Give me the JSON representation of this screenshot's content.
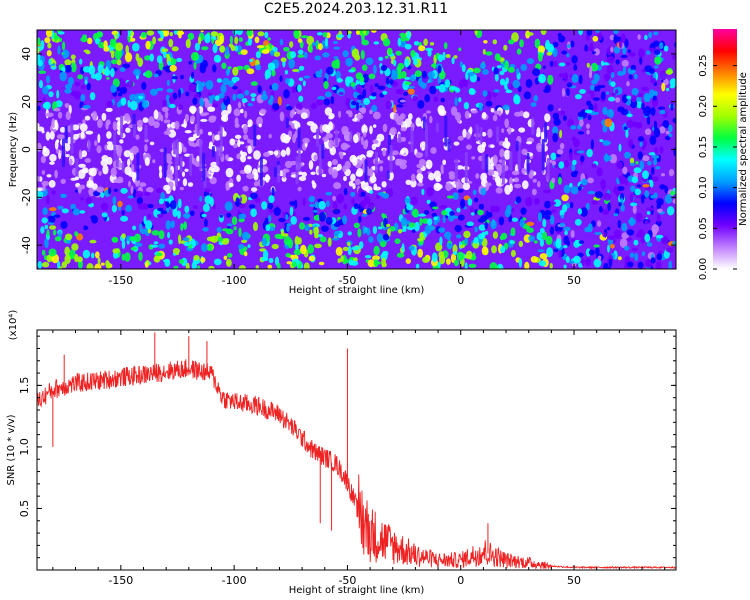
{
  "title": "C2E5.2024.203.12.31.R11",
  "chart_data": [
    {
      "type": "heatmap",
      "xlabel": "Height of straight line (km)",
      "ylabel": "Frequency (Hz)",
      "xlim": [
        -187,
        95
      ],
      "ylim": [
        -50,
        50
      ],
      "x_ticks": [
        -150,
        -100,
        -50,
        0,
        50
      ],
      "y_ticks": [
        -40,
        -20,
        0,
        20,
        40
      ],
      "colorbar": {
        "label": "Normalized spectral amplitude",
        "range": [
          0,
          0.295
        ],
        "ticks": [
          "0.00",
          "0.05",
          "0.10",
          "0.15",
          "0.20",
          "0.25"
        ],
        "ticks_value": [
          0,
          0.05,
          0.1,
          0.15,
          0.2,
          0.25
        ],
        "colors": [
          "#ffffff",
          "#c080ff",
          "#7000ff",
          "#0000ff",
          "#00a0ff",
          "#00ffff",
          "#00ff40",
          "#a0ff00",
          "#ffff00",
          "#ff8000",
          "#ff0000",
          "#ff00a0"
        ]
      },
      "description_values": {
        "band_center_hz": 0,
        "band_halfwidth_hz": 17,
        "band_extent_x": [
          -187,
          40
        ]
      }
    },
    {
      "type": "line",
      "xlabel": "Height of straight line (km)",
      "ylabel": "SNR (10 * v/v)",
      "y_multiplier": "(x10⁴)",
      "xlim": [
        -187,
        95
      ],
      "ylim": [
        0,
        1.95
      ],
      "x_ticks": [
        -150,
        -100,
        -50,
        0,
        50
      ],
      "y_ticks": [
        0.5,
        1.0,
        1.5
      ],
      "y_tick_labels": [
        "0.5",
        "1.0",
        "1.5"
      ],
      "color": "#ee2222",
      "envelope": [
        {
          "x": -187,
          "y": 1.35
        },
        {
          "x": -180,
          "y": 1.45
        },
        {
          "x": -170,
          "y": 1.5
        },
        {
          "x": -160,
          "y": 1.52
        },
        {
          "x": -150,
          "y": 1.55
        },
        {
          "x": -140,
          "y": 1.57
        },
        {
          "x": -130,
          "y": 1.6
        },
        {
          "x": -120,
          "y": 1.62
        },
        {
          "x": -110,
          "y": 1.58
        },
        {
          "x": -105,
          "y": 1.38
        },
        {
          "x": -100,
          "y": 1.35
        },
        {
          "x": -90,
          "y": 1.32
        },
        {
          "x": -80,
          "y": 1.25
        },
        {
          "x": -72,
          "y": 1.1
        },
        {
          "x": -65,
          "y": 0.95
        },
        {
          "x": -55,
          "y": 0.85
        },
        {
          "x": -50,
          "y": 0.7
        },
        {
          "x": -45,
          "y": 0.45
        },
        {
          "x": -40,
          "y": 0.3
        },
        {
          "x": -35,
          "y": 0.25
        },
        {
          "x": -30,
          "y": 0.2
        },
        {
          "x": -20,
          "y": 0.12
        },
        {
          "x": -10,
          "y": 0.08
        },
        {
          "x": 0,
          "y": 0.08
        },
        {
          "x": 10,
          "y": 0.15
        },
        {
          "x": 20,
          "y": 0.08
        },
        {
          "x": 30,
          "y": 0.06
        },
        {
          "x": 40,
          "y": 0.03
        },
        {
          "x": 50,
          "y": 0.02
        },
        {
          "x": 95,
          "y": 0.02
        }
      ],
      "spikes": [
        {
          "x": -180,
          "y": 1.0
        },
        {
          "x": -175,
          "y": 1.75
        },
        {
          "x": -135,
          "y": 1.93
        },
        {
          "x": -120,
          "y": 1.9
        },
        {
          "x": -112,
          "y": 1.86
        },
        {
          "x": -50,
          "y": 1.8
        },
        {
          "x": -62,
          "y": 0.38
        },
        {
          "x": -57,
          "y": 0.32
        },
        {
          "x": 12,
          "y": 0.38
        }
      ]
    }
  ]
}
